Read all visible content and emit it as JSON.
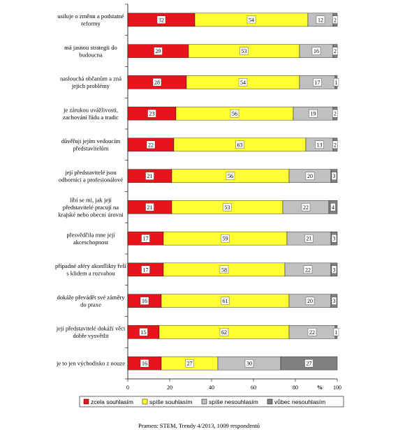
{
  "chart_data": {
    "type": "bar",
    "orientation": "horizontal",
    "stacked": true,
    "categories": [
      [
        "usiluje o změnu a podstatné",
        "reformy"
      ],
      [
        "má jasnou strategii do",
        "budoucna"
      ],
      [
        "naslouchá občanům a zná",
        "jejich problémy"
      ],
      [
        "je zárukou uvážlivosti,",
        "zachování řádu a tradic"
      ],
      [
        "důvěřuji jejím vedoucím",
        "představitelům"
      ],
      [
        "její představitelé jsou",
        "odborníci a profesionálové"
      ],
      [
        "líbí se mi, jak její",
        "představitelé pracují na",
        "krajské nebo obecní úrovni"
      ],
      [
        "přesvědčila mne její",
        "akceschopnost"
      ],
      [
        "případné aféry akonflikty řeší",
        "s klidem a rozvahou"
      ],
      [
        "dokáže převádět své záměry",
        "do praxe"
      ],
      [
        "její představitelé dokáží věci",
        "dobře vysvětlit"
      ],
      [
        "je to jen východisko z nouze"
      ]
    ],
    "series": [
      {
        "name": "zcela souhlasím",
        "color": "#e8141c",
        "values": [
          32,
          29,
          28,
          23,
          22,
          21,
          21,
          17,
          17,
          16,
          15,
          16
        ]
      },
      {
        "name": "spíše souhlasím",
        "color": "#ffff33",
        "values": [
          54,
          53,
          54,
          56,
          63,
          56,
          53,
          59,
          58,
          61,
          62,
          27
        ]
      },
      {
        "name": "spíše nesouhlasím",
        "color": "#c0c0c0",
        "values": [
          12,
          16,
          17,
          19,
          13,
          20,
          22,
          21,
          22,
          20,
          22,
          30
        ]
      },
      {
        "name": "vůbec nesouhlasím",
        "color": "#808080",
        "values": [
          2,
          2,
          1,
          2,
          2,
          3,
          4,
          3,
          3,
          3,
          1,
          27
        ]
      }
    ],
    "xlim": [
      0,
      100
    ],
    "xticks": [
      0,
      20,
      40,
      60,
      80,
      100
    ],
    "x_unit": "%",
    "legend_position": "bottom"
  },
  "source_note": "Pramen: STEM, Trendy 4/2013, 1009 respondentů"
}
